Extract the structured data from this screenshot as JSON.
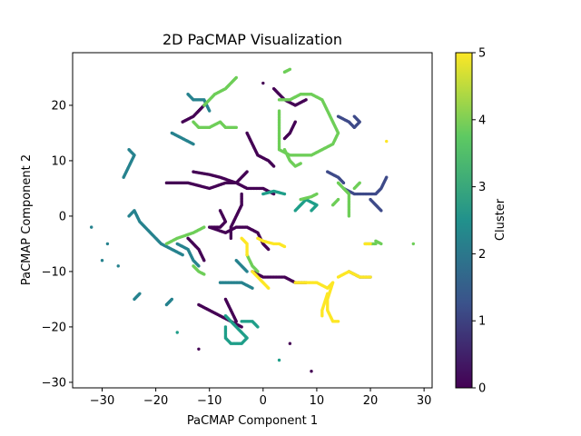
{
  "chart_data": {
    "type": "scatter",
    "title": "2D PaCMAP Visualization",
    "xlabel": "PaCMAP Component 1",
    "ylabel": "PaCMAP Component 2",
    "xlim": [
      -35.5,
      31.5
    ],
    "ylim": [
      -31,
      29.5
    ],
    "xticks": [
      -30,
      -20,
      -10,
      0,
      10,
      20,
      30
    ],
    "yticks": [
      -30,
      -20,
      -10,
      0,
      10,
      20
    ],
    "grid": false,
    "colorbar": {
      "label": "Cluster",
      "min": 0,
      "max": 5,
      "ticks": [
        0,
        1,
        2,
        3,
        4,
        5
      ],
      "colormap": "viridis",
      "stops": [
        "#440154",
        "#3b528b",
        "#21918c",
        "#5ec962",
        "#fde725"
      ]
    },
    "cluster_colors": [
      "#440154",
      "#3e4a89",
      "#26828e",
      "#1f9e89",
      "#6ece58",
      "#fde725"
    ],
    "strands": [
      {
        "cluster": 0,
        "points": [
          [
            -18,
            6
          ],
          [
            -14,
            6
          ],
          [
            -10,
            5
          ],
          [
            -7,
            6
          ],
          [
            -5,
            6
          ],
          [
            -3,
            5
          ],
          [
            0,
            5
          ],
          [
            2,
            4
          ]
        ]
      },
      {
        "cluster": 0,
        "points": [
          [
            -13,
            8
          ],
          [
            -10,
            7.5
          ],
          [
            -8,
            7
          ],
          [
            -5,
            6
          ],
          [
            -3,
            8
          ]
        ]
      },
      {
        "cluster": 0,
        "points": [
          [
            -4,
            4
          ],
          [
            -4,
            2
          ],
          [
            -5,
            0
          ],
          [
            -6,
            -2
          ],
          [
            -6,
            -4
          ]
        ]
      },
      {
        "cluster": 0,
        "points": [
          [
            -8,
            1
          ],
          [
            -7,
            -1
          ],
          [
            -8,
            -2
          ],
          [
            -10,
            -2
          ],
          [
            -7,
            -3
          ],
          [
            -5,
            -2
          ],
          [
            -3,
            -2
          ],
          [
            -1,
            -3
          ],
          [
            0,
            -5
          ],
          [
            1,
            -6
          ]
        ]
      },
      {
        "cluster": 0,
        "points": [
          [
            -2,
            -10
          ],
          [
            0,
            -11
          ],
          [
            2,
            -11
          ],
          [
            4,
            -11
          ],
          [
            6,
            -12
          ],
          [
            8,
            -12
          ]
        ]
      },
      {
        "cluster": 0,
        "points": [
          [
            -12,
            -16
          ],
          [
            -10,
            -17
          ],
          [
            -8,
            -18
          ],
          [
            -6,
            -19
          ],
          [
            -4,
            -20
          ]
        ]
      },
      {
        "cluster": 0,
        "points": [
          [
            -7,
            -15
          ],
          [
            -6,
            -17
          ],
          [
            -5,
            -19
          ]
        ]
      },
      {
        "cluster": 0,
        "points": [
          [
            2,
            23
          ],
          [
            4,
            21
          ],
          [
            6,
            20
          ],
          [
            8,
            21
          ]
        ]
      },
      {
        "cluster": 0,
        "points": [
          [
            6,
            17
          ],
          [
            5,
            15
          ],
          [
            4,
            14
          ]
        ]
      },
      {
        "cluster": 0,
        "points": [
          [
            -15,
            17
          ],
          [
            -13,
            18
          ],
          [
            -11,
            20
          ]
        ]
      },
      {
        "cluster": 0,
        "points": [
          [
            -3,
            15
          ],
          [
            -2,
            13
          ],
          [
            -1,
            11
          ],
          [
            1,
            10
          ],
          [
            2,
            9
          ]
        ]
      },
      {
        "cluster": 0,
        "points": [
          [
            -14,
            -4
          ],
          [
            -12,
            -6
          ],
          [
            -11,
            -8
          ]
        ]
      },
      {
        "cluster": 0,
        "points": [
          [
            0,
            24
          ]
        ]
      },
      {
        "cluster": 0,
        "points": [
          [
            -12,
            -24
          ]
        ]
      },
      {
        "cluster": 0,
        "points": [
          [
            5,
            -23
          ]
        ]
      },
      {
        "cluster": 0,
        "points": [
          [
            9,
            -28
          ]
        ]
      },
      {
        "cluster": 1,
        "points": [
          [
            15,
            5
          ],
          [
            17,
            4
          ],
          [
            19,
            4
          ],
          [
            21,
            4
          ],
          [
            22,
            5
          ],
          [
            23,
            7
          ]
        ]
      },
      {
        "cluster": 1,
        "points": [
          [
            20,
            3
          ],
          [
            21,
            2
          ],
          [
            22,
            1
          ]
        ]
      },
      {
        "cluster": 1,
        "points": [
          [
            14,
            18
          ],
          [
            16,
            17
          ],
          [
            17,
            16
          ],
          [
            18,
            17
          ],
          [
            17,
            18
          ]
        ]
      },
      {
        "cluster": 1,
        "points": [
          [
            12,
            8
          ],
          [
            14,
            7
          ],
          [
            15,
            6
          ]
        ]
      },
      {
        "cluster": 1,
        "points": [
          [
            16,
            -10
          ],
          [
            18,
            -11
          ],
          [
            20,
            -11
          ]
        ]
      },
      {
        "cluster": 2,
        "points": [
          [
            -14,
            22
          ],
          [
            -13,
            21
          ],
          [
            -11,
            21
          ],
          [
            -10,
            19
          ]
        ]
      },
      {
        "cluster": 2,
        "points": [
          [
            -17,
            15
          ],
          [
            -15,
            14
          ],
          [
            -13,
            13
          ]
        ]
      },
      {
        "cluster": 2,
        "points": [
          [
            -25,
            12
          ],
          [
            -24,
            11
          ],
          [
            -25,
            9
          ],
          [
            -26,
            7
          ]
        ]
      },
      {
        "cluster": 2,
        "points": [
          [
            -25,
            0
          ],
          [
            -24,
            1
          ],
          [
            -23,
            -1
          ],
          [
            -21,
            -3
          ],
          [
            -19,
            -5
          ],
          [
            -17,
            -6
          ],
          [
            -15,
            -7
          ]
        ]
      },
      {
        "cluster": 2,
        "points": [
          [
            -16,
            -5
          ],
          [
            -14,
            -6
          ],
          [
            -13,
            -8
          ],
          [
            -12,
            -9
          ]
        ]
      },
      {
        "cluster": 2,
        "points": [
          [
            -23,
            -14
          ],
          [
            -24,
            -15
          ]
        ]
      },
      {
        "cluster": 2,
        "points": [
          [
            -17,
            -15
          ],
          [
            -18,
            -16
          ]
        ]
      },
      {
        "cluster": 2,
        "points": [
          [
            -8,
            -12
          ],
          [
            -6,
            -12
          ],
          [
            -4,
            -12
          ],
          [
            -2,
            -13
          ]
        ]
      },
      {
        "cluster": 2,
        "points": [
          [
            -5,
            -8
          ],
          [
            -4,
            -9
          ],
          [
            -3,
            -10
          ]
        ]
      },
      {
        "cluster": 2,
        "points": [
          [
            -32,
            -2
          ]
        ]
      },
      {
        "cluster": 2,
        "points": [
          [
            -29,
            -5
          ]
        ]
      },
      {
        "cluster": 2,
        "points": [
          [
            -30,
            -8
          ]
        ]
      },
      {
        "cluster": 2,
        "points": [
          [
            -27,
            -9
          ]
        ]
      },
      {
        "cluster": 3,
        "points": [
          [
            -7,
            -18
          ],
          [
            -6,
            -19
          ],
          [
            -5,
            -20
          ],
          [
            -4,
            -21
          ],
          [
            -3,
            -22
          ],
          [
            -4,
            -23
          ],
          [
            -6,
            -23
          ],
          [
            -7,
            -22
          ],
          [
            -7,
            -20
          ]
        ]
      },
      {
        "cluster": 3,
        "points": [
          [
            -4,
            -19
          ],
          [
            -2,
            -19
          ],
          [
            -1,
            -20
          ]
        ]
      },
      {
        "cluster": 3,
        "points": [
          [
            9,
            1
          ],
          [
            10,
            2
          ],
          [
            8,
            3
          ],
          [
            7,
            2
          ],
          [
            6,
            1
          ]
        ]
      },
      {
        "cluster": 3,
        "points": [
          [
            4,
            4
          ],
          [
            2,
            4.5
          ],
          [
            0,
            4
          ]
        ]
      },
      {
        "cluster": 3,
        "points": [
          [
            -16,
            -21
          ]
        ]
      },
      {
        "cluster": 3,
        "points": [
          [
            3,
            -26
          ]
        ]
      },
      {
        "cluster": 4,
        "points": [
          [
            -11,
            20
          ],
          [
            -9,
            22
          ],
          [
            -7,
            23
          ],
          [
            -6,
            24
          ],
          [
            -5,
            25
          ]
        ]
      },
      {
        "cluster": 4,
        "points": [
          [
            -13,
            17
          ],
          [
            -12,
            16
          ],
          [
            -10,
            16
          ],
          [
            -8,
            17
          ],
          [
            -7,
            16
          ],
          [
            -5,
            16
          ]
        ]
      },
      {
        "cluster": 4,
        "points": [
          [
            3,
            21
          ],
          [
            5,
            21
          ],
          [
            7,
            22
          ],
          [
            9,
            22
          ],
          [
            11,
            21
          ],
          [
            12,
            19
          ],
          [
            13,
            17
          ],
          [
            14,
            15
          ],
          [
            13,
            13
          ],
          [
            11,
            12
          ],
          [
            9,
            11
          ],
          [
            7,
            11
          ],
          [
            5,
            11
          ],
          [
            3,
            12
          ],
          [
            3,
            14
          ],
          [
            3,
            17
          ],
          [
            3,
            19
          ]
        ]
      },
      {
        "cluster": 4,
        "points": [
          [
            4,
            12
          ],
          [
            5,
            10
          ],
          [
            6,
            9
          ],
          [
            7,
            9.5
          ]
        ]
      },
      {
        "cluster": 4,
        "points": [
          [
            14,
            6
          ],
          [
            15,
            5
          ],
          [
            16,
            4
          ],
          [
            16,
            2
          ],
          [
            16,
            0
          ]
        ]
      },
      {
        "cluster": 4,
        "points": [
          [
            17,
            5
          ],
          [
            18,
            6
          ]
        ]
      },
      {
        "cluster": 4,
        "points": [
          [
            14,
            3
          ],
          [
            13,
            2
          ]
        ]
      },
      {
        "cluster": 4,
        "points": [
          [
            7,
            3
          ],
          [
            9,
            3.5
          ],
          [
            10,
            4
          ]
        ]
      },
      {
        "cluster": 4,
        "points": [
          [
            -11,
            -2
          ],
          [
            -13,
            -3
          ],
          [
            -16,
            -4
          ],
          [
            -18,
            -5
          ]
        ]
      },
      {
        "cluster": 4,
        "points": [
          [
            -13,
            -9
          ],
          [
            -12,
            -10
          ],
          [
            -11,
            -10.5
          ]
        ]
      },
      {
        "cluster": 4,
        "points": [
          [
            -3,
            -7
          ],
          [
            -2,
            -9
          ],
          [
            -1,
            -10
          ]
        ]
      },
      {
        "cluster": 4,
        "points": [
          [
            19,
            -5
          ],
          [
            20,
            -5
          ],
          [
            21,
            -5
          ]
        ]
      },
      {
        "cluster": 4,
        "points": [
          [
            21,
            -4.5
          ],
          [
            22,
            -5
          ]
        ]
      },
      {
        "cluster": 4,
        "points": [
          [
            4,
            26
          ],
          [
            5,
            26.5
          ]
        ]
      },
      {
        "cluster": 4,
        "points": [
          [
            28,
            -5
          ]
        ]
      },
      {
        "cluster": 5,
        "points": [
          [
            6,
            -12
          ],
          [
            8,
            -12
          ],
          [
            10,
            -12
          ],
          [
            12,
            -13
          ],
          [
            13,
            -12
          ],
          [
            12,
            -15
          ],
          [
            12,
            -17
          ],
          [
            13,
            -19
          ],
          [
            14,
            -19
          ]
        ]
      },
      {
        "cluster": 5,
        "points": [
          [
            14,
            -11
          ],
          [
            16,
            -10
          ],
          [
            18,
            -11
          ],
          [
            20,
            -11
          ]
        ]
      },
      {
        "cluster": 5,
        "points": [
          [
            12,
            -14
          ],
          [
            11,
            -17
          ],
          [
            11,
            -18
          ]
        ]
      },
      {
        "cluster": 5,
        "points": [
          [
            -1,
            -4
          ],
          [
            0,
            -4.5
          ],
          [
            2,
            -5
          ],
          [
            3,
            -5
          ],
          [
            4,
            -5.5
          ]
        ]
      },
      {
        "cluster": 5,
        "points": [
          [
            -4,
            -4
          ],
          [
            -3,
            -5
          ],
          [
            -3,
            -7
          ]
        ]
      },
      {
        "cluster": 5,
        "points": [
          [
            -2,
            -10
          ],
          [
            -1,
            -11
          ],
          [
            0,
            -12
          ],
          [
            1,
            -13
          ]
        ]
      },
      {
        "cluster": 5,
        "points": [
          [
            23,
            13.5
          ]
        ]
      },
      {
        "cluster": 5,
        "points": [
          [
            19,
            -5
          ],
          [
            20,
            -5
          ]
        ]
      }
    ]
  }
}
